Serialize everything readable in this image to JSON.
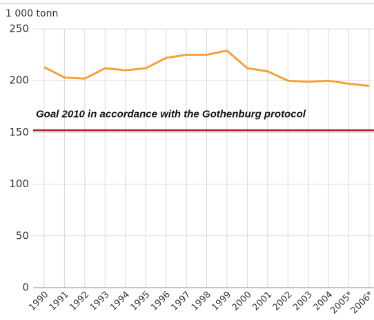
{
  "chart_data": {
    "type": "line",
    "y_label": "1 000 tonn",
    "categories": [
      "1990",
      "1991",
      "1992",
      "1993",
      "1994",
      "1995",
      "1996",
      "1997",
      "1998",
      "1999",
      "2000",
      "2001",
      "2002",
      "2003",
      "2004",
      "2005*",
      "2006*"
    ],
    "series": [
      {
        "color": "#f5a03a",
        "values": [
          213,
          203,
          202,
          212,
          210,
          212,
          222,
          225,
          225,
          229,
          212,
          209,
          200,
          199,
          200,
          197,
          195
        ]
      }
    ],
    "reference_line": {
      "value": 152,
      "label": "Goal 2010 in accordance with the Gothenburg protocol",
      "color": "#a3161b"
    },
    "ylim": [
      0,
      250
    ],
    "yticks": [
      0,
      50,
      100,
      150,
      200,
      250
    ],
    "grid": true
  }
}
